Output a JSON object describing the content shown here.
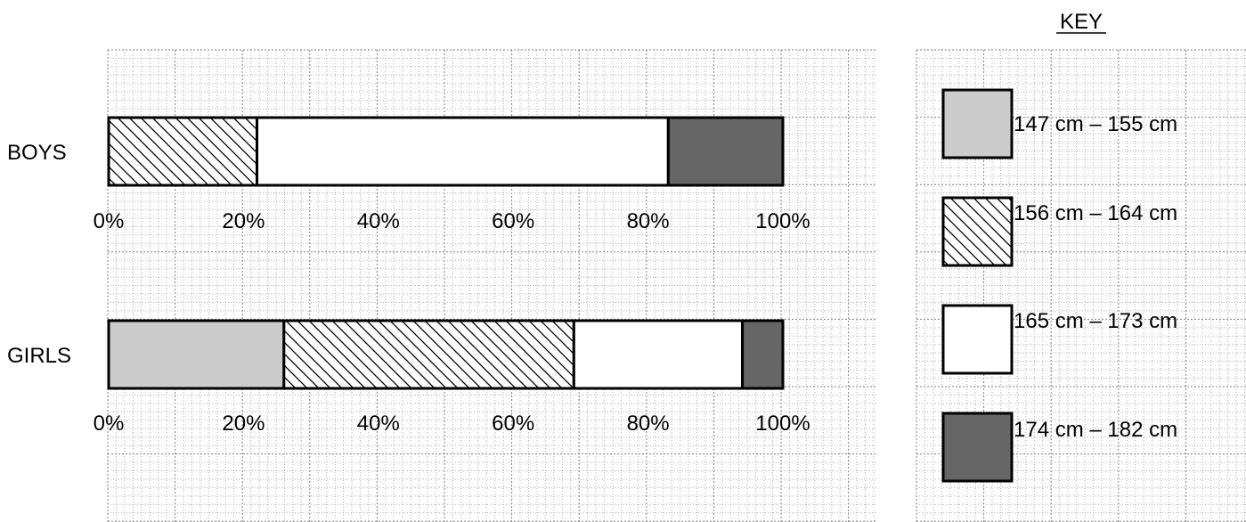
{
  "chart_data": {
    "type": "bar",
    "stacked": true,
    "orientation": "horizontal",
    "percent_scale": true,
    "categories": [
      "BOYS",
      "GIRLS"
    ],
    "series": [
      {
        "name": "147 cm – 155 cm",
        "values": [
          0,
          26
        ],
        "fill": "#cccccc",
        "pattern": "solid"
      },
      {
        "name": "156 cm – 164 cm",
        "values": [
          22,
          43
        ],
        "fill": "#ffffff",
        "pattern": "diagonal-hatch"
      },
      {
        "name": "165 cm – 173 cm",
        "values": [
          61,
          25
        ],
        "fill": "#ffffff",
        "pattern": "solid"
      },
      {
        "name": "174 cm – 182 cm",
        "values": [
          17,
          6
        ],
        "fill": "#666666",
        "pattern": "solid"
      }
    ],
    "x_ticks": [
      "0%",
      "20%",
      "40%",
      "60%",
      "80%",
      "100%"
    ],
    "xlim": [
      0,
      100
    ],
    "legend_title": "KEY",
    "legend_position": "right",
    "grid": true
  },
  "colors": {
    "grid_minor": "#b0b0b0",
    "grid_major": "#808080",
    "outline": "#000000"
  }
}
